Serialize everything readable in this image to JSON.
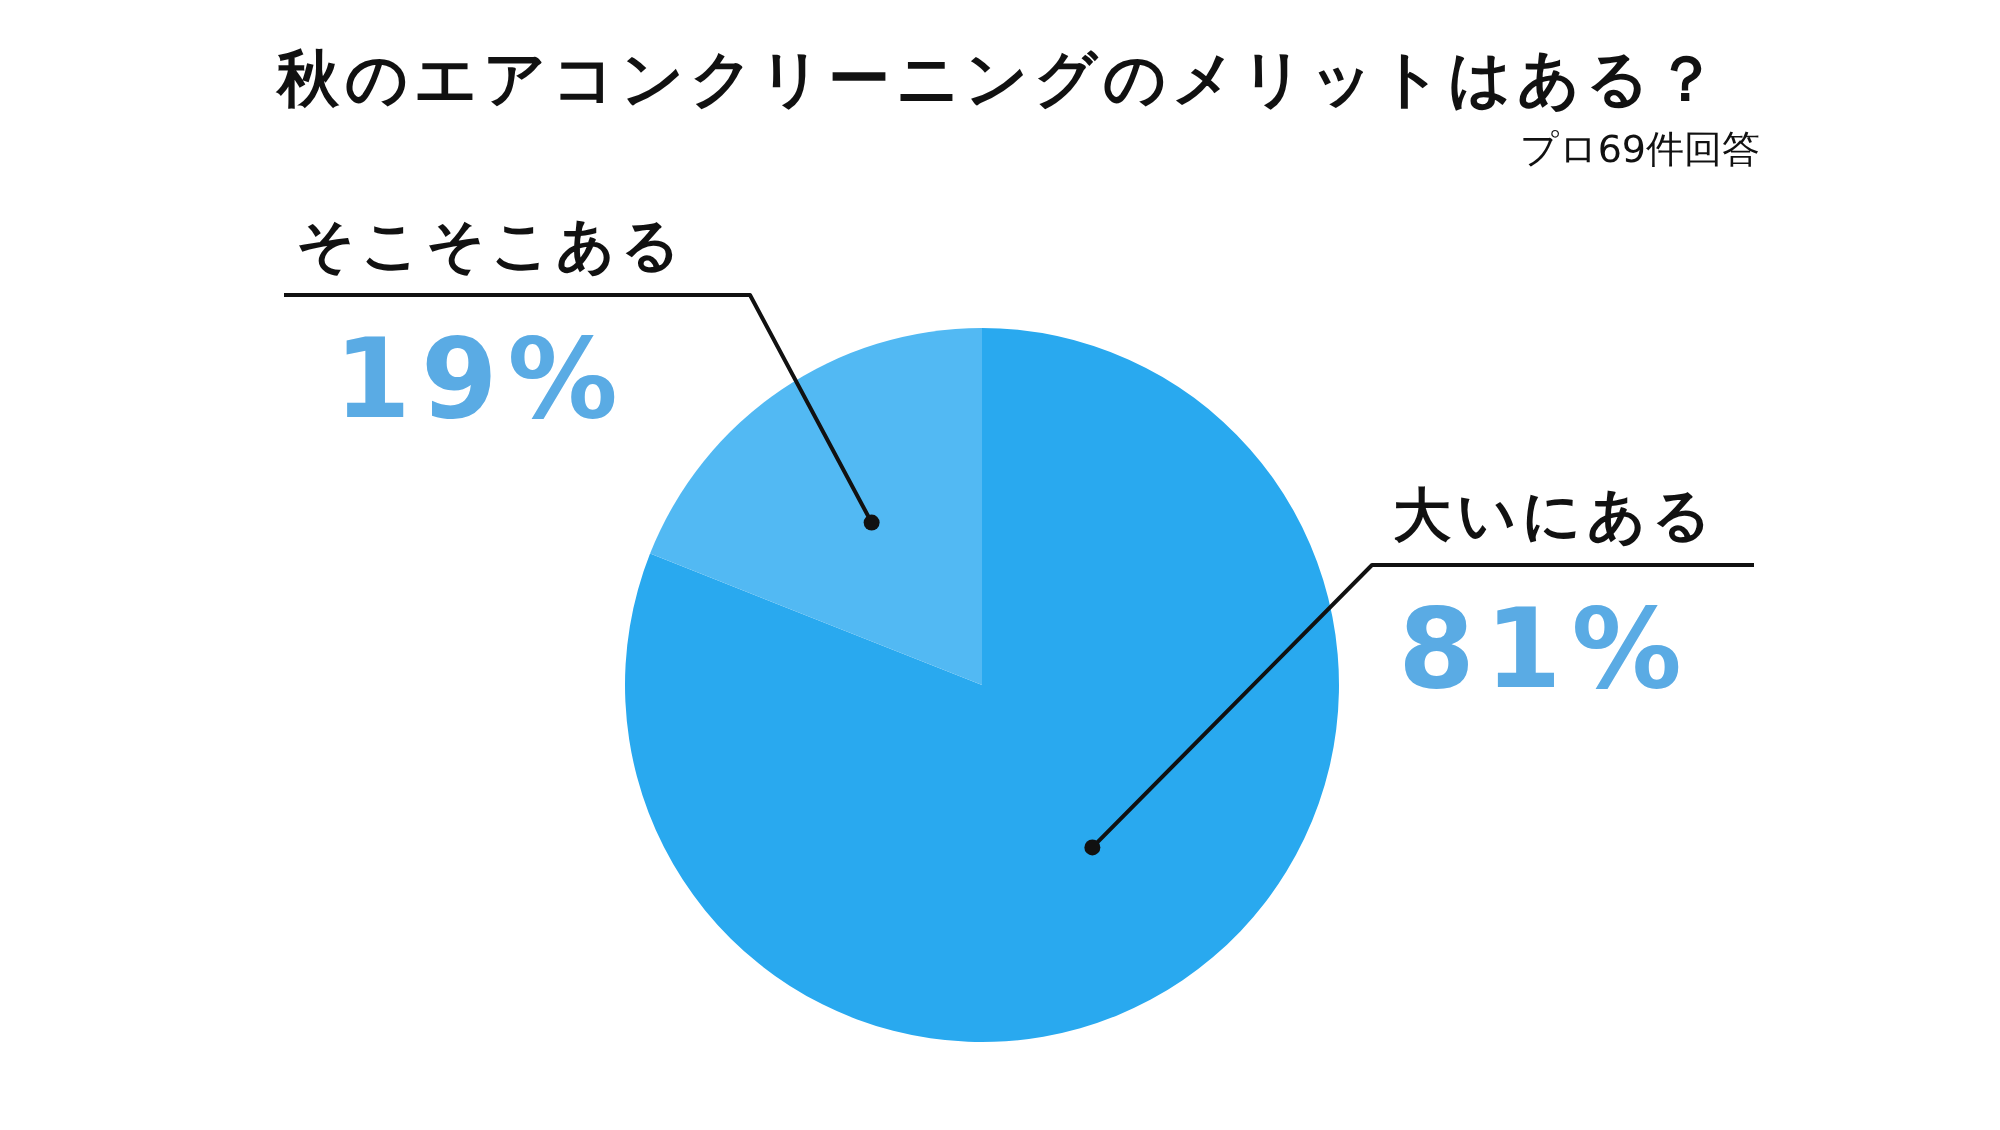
{
  "chart_data": {
    "type": "pie",
    "title": "秋のエアコンクリーニングのメリットはある？",
    "subtitle": "プロ69件回答",
    "categories": [
      "大いにある",
      "そこそこある"
    ],
    "values": [
      81,
      19
    ],
    "colors": [
      "#29a9ef",
      "#52b9f3"
    ],
    "value_labels": [
      "81%",
      "19%"
    ]
  }
}
